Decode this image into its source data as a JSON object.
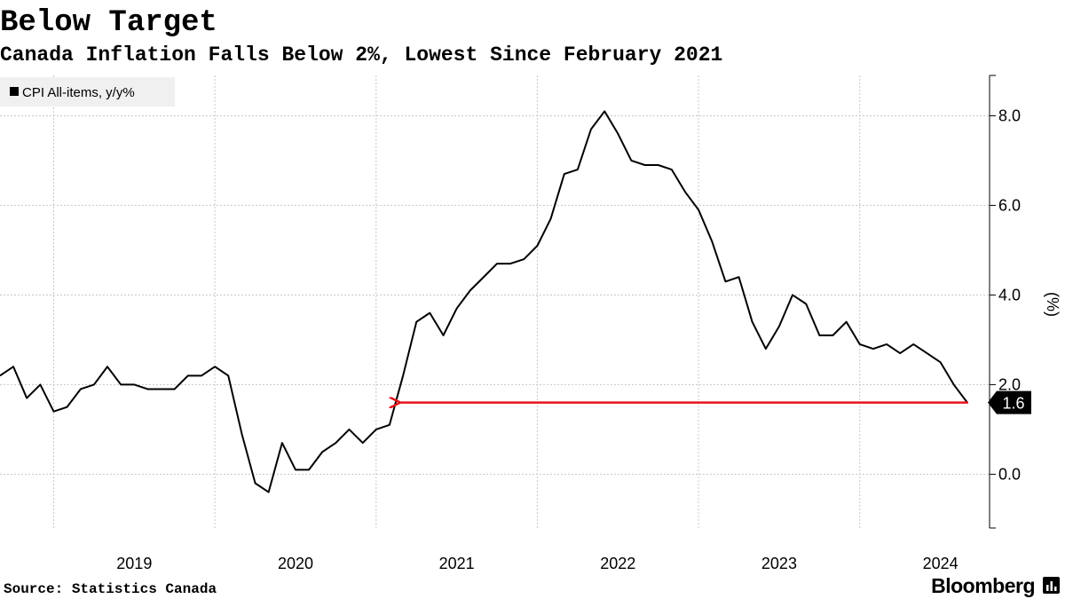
{
  "chart_data": {
    "type": "line",
    "title": "Below Target",
    "subtitle": "Canada Inflation Falls Below 2%, Lowest Since February 2021",
    "source": "Source: Statistics Canada",
    "brand": "Bloomberg",
    "y_label": "(%)",
    "series": [
      {
        "name": "CPI All-items, y/y%",
        "color": "#000000",
        "x": [
          2018.667,
          2018.75,
          2018.833,
          2018.917,
          2019.0,
          2019.083,
          2019.167,
          2019.25,
          2019.333,
          2019.417,
          2019.5,
          2019.583,
          2019.667,
          2019.75,
          2019.833,
          2019.917,
          2020.0,
          2020.083,
          2020.167,
          2020.25,
          2020.333,
          2020.417,
          2020.5,
          2020.583,
          2020.667,
          2020.75,
          2020.833,
          2020.917,
          2021.0,
          2021.083,
          2021.167,
          2021.25,
          2021.333,
          2021.417,
          2021.5,
          2021.583,
          2021.667,
          2021.75,
          2021.833,
          2021.917,
          2022.0,
          2022.083,
          2022.167,
          2022.25,
          2022.333,
          2022.417,
          2022.5,
          2022.583,
          2022.667,
          2022.75,
          2022.833,
          2022.917,
          2023.0,
          2023.083,
          2023.167,
          2023.25,
          2023.333,
          2023.417,
          2023.5,
          2023.583,
          2023.667,
          2023.75,
          2023.833,
          2023.917,
          2024.0,
          2024.083,
          2024.167,
          2024.25,
          2024.333,
          2024.417,
          2024.5,
          2024.583,
          2024.667
        ],
        "values": [
          2.2,
          2.4,
          1.7,
          2.0,
          1.4,
          1.5,
          1.9,
          2.0,
          2.4,
          2.0,
          2.0,
          1.9,
          1.9,
          1.9,
          2.2,
          2.2,
          2.4,
          2.2,
          0.9,
          -0.2,
          -0.4,
          0.7,
          0.1,
          0.1,
          0.5,
          0.7,
          1.0,
          0.7,
          1.0,
          1.1,
          2.2,
          3.4,
          3.6,
          3.1,
          3.7,
          4.1,
          4.4,
          4.7,
          4.7,
          4.8,
          5.1,
          5.7,
          6.7,
          6.8,
          7.7,
          8.1,
          7.6,
          7.0,
          6.9,
          6.9,
          6.8,
          6.3,
          5.9,
          5.2,
          4.3,
          4.4,
          3.4,
          2.8,
          3.3,
          4.0,
          3.8,
          3.1,
          3.1,
          3.4,
          2.9,
          2.8,
          2.9,
          2.7,
          2.9,
          2.7,
          2.5,
          2.0,
          1.6
        ]
      }
    ],
    "xlim": [
      2018.667,
      2024.805
    ],
    "xticks": [
      2019,
      2020,
      2021,
      2022,
      2023,
      2024
    ],
    "ylim": [
      -1.2,
      8.9
    ],
    "yticks": [
      {
        "value": 0,
        "label": "0.0"
      },
      {
        "value": 2,
        "label": "2.0"
      },
      {
        "value": 4,
        "label": "4.0"
      },
      {
        "value": 6,
        "label": "6.0"
      },
      {
        "value": 8,
        "label": "8.0"
      }
    ],
    "grid": true,
    "y_axis_side": "right",
    "legend": "top-left",
    "highlight_color": "#e4141b"
  }
}
